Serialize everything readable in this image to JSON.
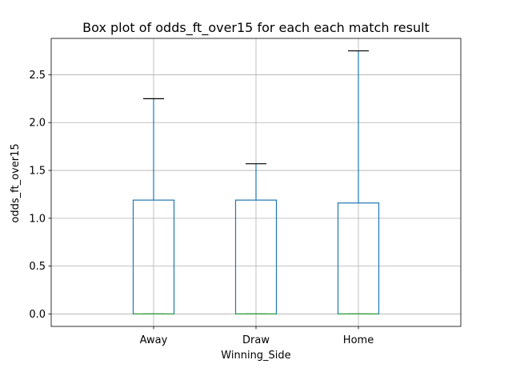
{
  "chart_data": {
    "type": "box",
    "title": "Box plot of odds_ft_over15 for each each match result",
    "xlabel": "Winning_Side",
    "ylabel": "odds_ft_over15",
    "categories": [
      "Away",
      "Draw",
      "Home"
    ],
    "ylim": [
      -0.13,
      2.88
    ],
    "yticks": [
      0.0,
      0.5,
      1.0,
      1.5,
      2.0,
      2.5
    ],
    "ytick_labels": [
      "0.0",
      "0.5",
      "1.0",
      "1.5",
      "2.0",
      "2.5"
    ],
    "grid": true,
    "boxes": [
      {
        "category": "Away",
        "whisker_low": 0.0,
        "q1": 0.0,
        "median": 0.0,
        "q3": 1.19,
        "whisker_high": 2.25
      },
      {
        "category": "Draw",
        "whisker_low": 0.0,
        "q1": 0.0,
        "median": 0.0,
        "q3": 1.19,
        "whisker_high": 1.57
      },
      {
        "category": "Home",
        "whisker_low": 0.0,
        "q1": 0.0,
        "median": 0.0,
        "q3": 1.16,
        "whisker_high": 2.75
      }
    ],
    "colors": {
      "box": "#1f77b4",
      "median": "#2ca02c",
      "cap": "#000000",
      "grid": "#b0b0b0",
      "axes": "#000000"
    }
  }
}
